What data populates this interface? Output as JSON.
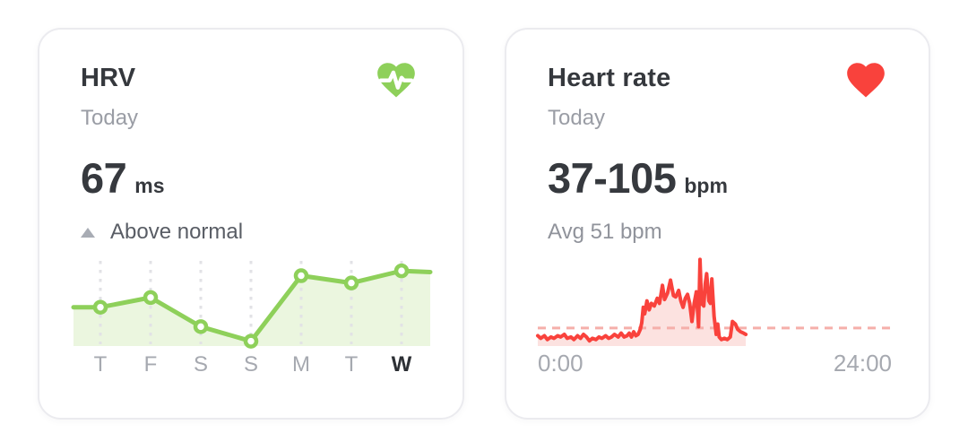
{
  "cards": {
    "hrv": {
      "title": "HRV",
      "period": "Today",
      "value": "67",
      "unit": "ms",
      "status_label": "Above normal",
      "status_direction": "up",
      "icon": "heart-pulse",
      "colors": {
        "accent": "#8ED05A",
        "area_fill": "#EBF6DF",
        "grid": "#E2E2E6",
        "marker_fill": "#FFFFFF",
        "label": "#A6A9B0",
        "label_highlight": "#2D3035"
      },
      "chart": {
        "type": "line",
        "unit": "ms",
        "categories": [
          "T",
          "F",
          "S",
          "S",
          "M",
          "T",
          "W"
        ],
        "values": [
          52,
          56,
          44,
          38,
          65,
          62,
          67
        ],
        "edge_lead_value": 52,
        "edge_tail_value": 66.5,
        "highlight_index": 6,
        "ylim": [
          36,
          70
        ],
        "grid": "dashed-vertical",
        "legend": "none"
      }
    },
    "heart_rate": {
      "title": "Heart rate",
      "period": "Today",
      "value": "37-105",
      "unit": "bpm",
      "avg_label": "Avg 51 bpm",
      "icon": "heart",
      "colors": {
        "accent": "#F9423C",
        "area_fill": "#FCE2E0",
        "avg_line": "#F5AFAA",
        "label": "#A6A9B0"
      },
      "chart": {
        "type": "area",
        "unit": "bpm",
        "x_start_label": "0:00",
        "x_end_label": "24:00",
        "x_range_hours": [
          0,
          24
        ],
        "avg_bpm": 51,
        "range_bpm": [
          37,
          105
        ],
        "avg_line_style": "dashed-horizontal",
        "points_t_bpm": [
          [
            0,
            45
          ],
          [
            0.2,
            43
          ],
          [
            0.45,
            45
          ],
          [
            0.65,
            42
          ],
          [
            0.9,
            44
          ],
          [
            1.1,
            43
          ],
          [
            1.35,
            45
          ],
          [
            1.55,
            44
          ],
          [
            1.8,
            46
          ],
          [
            2.0,
            43
          ],
          [
            2.25,
            44
          ],
          [
            2.45,
            42
          ],
          [
            2.7,
            45
          ],
          [
            2.9,
            43
          ],
          [
            3.1,
            46
          ],
          [
            3.3,
            44
          ],
          [
            3.5,
            41
          ],
          [
            3.7,
            43
          ],
          [
            3.95,
            42
          ],
          [
            4.15,
            44
          ],
          [
            4.35,
            43
          ],
          [
            4.6,
            45
          ],
          [
            4.8,
            43
          ],
          [
            5.0,
            44
          ],
          [
            5.2,
            46
          ],
          [
            5.45,
            44
          ],
          [
            5.65,
            47
          ],
          [
            5.85,
            44
          ],
          [
            6.05,
            45
          ],
          [
            6.2,
            47
          ],
          [
            6.35,
            44
          ],
          [
            6.5,
            48
          ],
          [
            6.65,
            45
          ],
          [
            6.8,
            46
          ],
          [
            6.95,
            50
          ],
          [
            7.05,
            55
          ],
          [
            7.15,
            67
          ],
          [
            7.25,
            62
          ],
          [
            7.4,
            72
          ],
          [
            7.55,
            65
          ],
          [
            7.7,
            70
          ],
          [
            7.9,
            68
          ],
          [
            8.1,
            74
          ],
          [
            8.25,
            70
          ],
          [
            8.45,
            84
          ],
          [
            8.6,
            73
          ],
          [
            8.8,
            78
          ],
          [
            9.0,
            88
          ],
          [
            9.2,
            76
          ],
          [
            9.35,
            75
          ],
          [
            9.55,
            80
          ],
          [
            9.7,
            72
          ],
          [
            9.85,
            67
          ],
          [
            10.0,
            74
          ],
          [
            10.15,
            77
          ],
          [
            10.3,
            70
          ],
          [
            10.45,
            56
          ],
          [
            10.6,
            70
          ],
          [
            10.75,
            79
          ],
          [
            10.9,
            52
          ],
          [
            11.0,
            104
          ],
          [
            11.1,
            70
          ],
          [
            11.25,
            68
          ],
          [
            11.35,
            85
          ],
          [
            11.45,
            93
          ],
          [
            11.6,
            72
          ],
          [
            11.7,
            70
          ],
          [
            11.8,
            89
          ],
          [
            11.95,
            60
          ],
          [
            12.1,
            46
          ],
          [
            12.2,
            54
          ],
          [
            12.3,
            44
          ],
          [
            12.45,
            42
          ],
          [
            12.65,
            43
          ],
          [
            12.85,
            42
          ],
          [
            13.05,
            44
          ],
          [
            13.2,
            56
          ],
          [
            13.4,
            54
          ],
          [
            13.55,
            50
          ],
          [
            13.75,
            48
          ],
          [
            13.95,
            47
          ],
          [
            14.1,
            46
          ]
        ]
      }
    }
  }
}
